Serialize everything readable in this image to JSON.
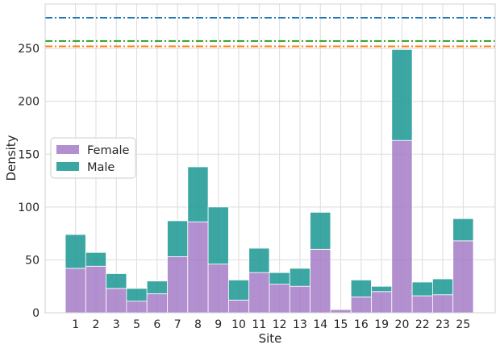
{
  "chart_data": {
    "type": "bar",
    "stacked": true,
    "title": "",
    "xlabel": "Site",
    "ylabel": "Density",
    "ylim": [
      0,
      292
    ],
    "yticks": [
      0,
      50,
      100,
      150,
      200,
      250
    ],
    "grid": true,
    "legend_placement": "center-left",
    "categories": [
      "1",
      "2",
      "3",
      "5",
      "6",
      "7",
      "8",
      "9",
      "10",
      "11",
      "12",
      "13",
      "14",
      "15",
      "16",
      "19",
      "20",
      "22",
      "23",
      "25"
    ],
    "series": [
      {
        "name": "Female",
        "color": "#a57bc7",
        "values": [
          42,
          44,
          23,
          11,
          18,
          53,
          86,
          46,
          12,
          38,
          27,
          25,
          60,
          3,
          15,
          20,
          163,
          16,
          17,
          68
        ]
      },
      {
        "name": "Male",
        "color": "#1a9793",
        "values": [
          32,
          13,
          14,
          12,
          12,
          34,
          52,
          54,
          19,
          23,
          11,
          17,
          35,
          0,
          16,
          5,
          86,
          13,
          15,
          21
        ]
      }
    ],
    "reference_lines": [
      {
        "value": 279,
        "color": "#1f77b4",
        "style": "dash-dot"
      },
      {
        "value": 257,
        "color": "#2ca02c",
        "style": "dash-dot"
      },
      {
        "value": 252,
        "color": "#ff7f0e",
        "style": "dash-dot"
      }
    ]
  }
}
